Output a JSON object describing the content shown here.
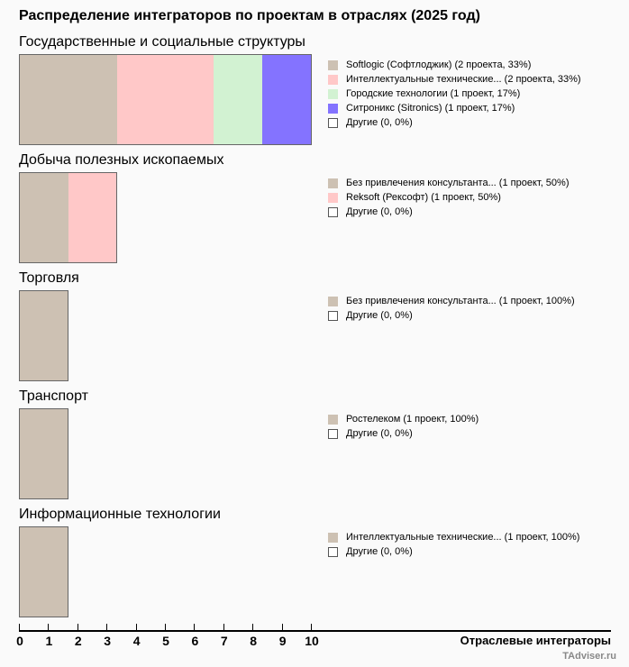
{
  "chart_data": {
    "type": "bar",
    "title": "Распределение интеграторов по проектам в отраслях (2025 год)",
    "xlabel": "Отраслевые интеграторы",
    "xlim": [
      0,
      10
    ],
    "ticks": [
      "0",
      "1",
      "2",
      "3",
      "4",
      "5",
      "6",
      "7",
      "8",
      "9",
      "10"
    ],
    "brand": "TAdviser.ru",
    "colors": {
      "tan": "#cdc1b3",
      "pink": "#ffc8c8",
      "green": "#d2f2d2",
      "purple": "#8473ff"
    },
    "sections": [
      {
        "name": "Государственные и социальные структуры",
        "items": [
          {
            "label": "Softlogic (Софтлоджик) (2 проекта, 33%)",
            "value": 2,
            "color": "#cdc1b3"
          },
          {
            "label": "Интеллектуальные технические... (2 проекта, 33%)",
            "value": 2,
            "color": "#ffc8c8"
          },
          {
            "label": "Городские технологии (1 проект, 17%)",
            "value": 1,
            "color": "#d2f2d2"
          },
          {
            "label": "Ситроникс (Sitronics) (1 проект, 17%)",
            "value": 1,
            "color": "#8473ff"
          },
          {
            "label": "Другие (0, 0%)",
            "value": 0,
            "color": "none"
          }
        ]
      },
      {
        "name": "Добыча полезных ископаемых",
        "items": [
          {
            "label": "Без привлечения консультанта... (1 проект, 50%)",
            "value": 1,
            "color": "#cdc1b3"
          },
          {
            "label": "Reksoft (Рексофт) (1 проект, 50%)",
            "value": 1,
            "color": "#ffc8c8"
          },
          {
            "label": "Другие (0, 0%)",
            "value": 0,
            "color": "none"
          }
        ]
      },
      {
        "name": "Торговля",
        "items": [
          {
            "label": "Без привлечения консультанта... (1 проект, 100%)",
            "value": 1,
            "color": "#cdc1b3"
          },
          {
            "label": "Другие (0, 0%)",
            "value": 0,
            "color": "none"
          }
        ]
      },
      {
        "name": "Транспорт",
        "items": [
          {
            "label": "Ростелеком (1 проект, 100%)",
            "value": 1,
            "color": "#cdc1b3"
          },
          {
            "label": "Другие (0, 0%)",
            "value": 0,
            "color": "none"
          }
        ]
      },
      {
        "name": "Информационные технологии",
        "items": [
          {
            "label": "Интеллектуальные технические... (1 проект, 100%)",
            "value": 1,
            "color": "#cdc1b3"
          },
          {
            "label": "Другие (0, 0%)",
            "value": 0,
            "color": "none"
          }
        ]
      }
    ]
  }
}
